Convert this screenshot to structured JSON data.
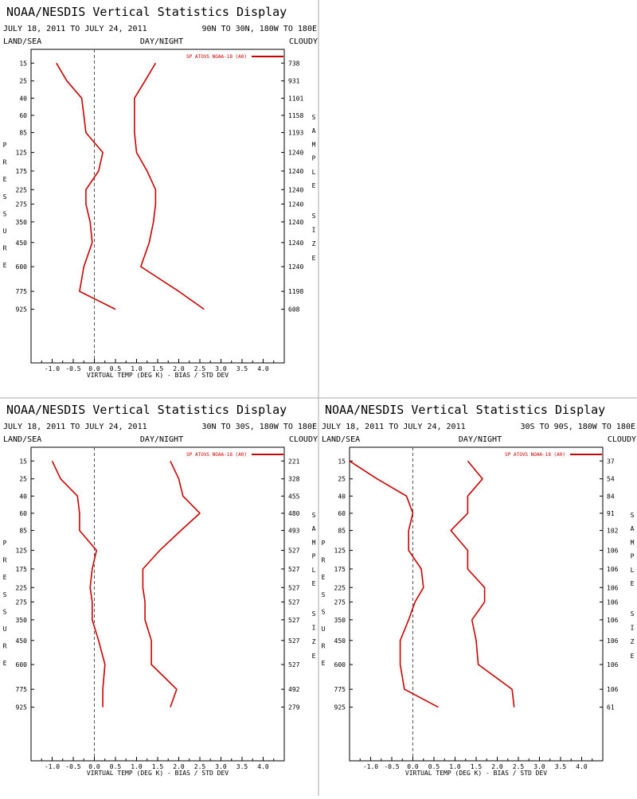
{
  "display_title": "NOAA/NESDIS Vertical Statistics Display",
  "panels_meta": {
    "date_range": "JULY 18, 2011 TO JULY 24, 2011",
    "land_sea": "LAND/SEA",
    "day_night": "DAY/NIGHT",
    "cloudy": "CLOUDY",
    "legend_label": "SP ATOVS NOAA-18 (A0)",
    "pressure_letters": [
      "P",
      "R",
      "E",
      "S",
      "S",
      "U",
      "R",
      "E"
    ],
    "sample_letters": [
      "S",
      "A",
      "M",
      "P",
      "L",
      "E"
    ],
    "size_letters": [
      "S",
      "I",
      "Z",
      "E"
    ],
    "xlabel": "VIRTUAL TEMP (DEG K) - BIAS / STD DEV",
    "xticks": [
      "-1.0",
      "-0.5",
      "0.0",
      "0.5",
      "1.0",
      "1.5",
      "2.0",
      "2.5",
      "3.0",
      "3.5",
      "4.0"
    ],
    "pressure_levels": [
      "15",
      "25",
      "40",
      "60",
      "85",
      "125",
      "175",
      "225",
      "275",
      "350",
      "450",
      "600",
      "775",
      "925"
    ]
  },
  "chart_data": [
    {
      "type": "line",
      "region": "90N TO 30N, 180W TO 180E",
      "pressure": [
        15,
        25,
        40,
        60,
        85,
        125,
        175,
        225,
        275,
        350,
        450,
        600,
        775,
        925
      ],
      "xlim": [
        -1.5,
        4.5
      ],
      "series": [
        {
          "name": "SP ATOVS NOAA-18 (A0)",
          "role": "bias",
          "values": [
            -0.9,
            -0.65,
            -0.3,
            -0.25,
            -0.2,
            0.2,
            0.1,
            -0.2,
            -0.2,
            -0.1,
            -0.05,
            -0.25,
            -0.35,
            0.5
          ]
        },
        {
          "name": "SP ATOVS NOAA-18 (A0)",
          "role": "std_dev",
          "values": [
            1.45,
            1.2,
            0.95,
            0.95,
            0.95,
            1.0,
            1.25,
            1.45,
            1.45,
            1.4,
            1.3,
            1.1,
            2.0,
            2.6
          ]
        }
      ],
      "sample_size": [
        "738",
        "931",
        "1101",
        "1158",
        "1193",
        "1240",
        "1240",
        "1240",
        "1240",
        "1240",
        "1240",
        "1240",
        "1198",
        "608"
      ]
    },
    {
      "type": "line",
      "region": "30N TO 30S, 180W TO 180E",
      "pressure": [
        15,
        25,
        40,
        60,
        85,
        125,
        175,
        225,
        275,
        350,
        450,
        600,
        775,
        925
      ],
      "xlim": [
        -1.5,
        4.5
      ],
      "series": [
        {
          "name": "SP ATOVS NOAA-18 (A0)",
          "role": "bias",
          "values": [
            -1.0,
            -0.8,
            -0.4,
            -0.35,
            -0.35,
            0.05,
            -0.05,
            -0.1,
            -0.05,
            -0.05,
            0.1,
            0.25,
            0.2,
            0.2
          ]
        },
        {
          "name": "SP ATOVS NOAA-18 (A0)",
          "role": "std_dev",
          "values": [
            1.8,
            2.0,
            2.1,
            2.5,
            2.05,
            1.55,
            1.15,
            1.15,
            1.2,
            1.2,
            1.35,
            1.35,
            1.95,
            1.8
          ]
        }
      ],
      "sample_size": [
        "221",
        "328",
        "455",
        "480",
        "493",
        "527",
        "527",
        "527",
        "527",
        "527",
        "527",
        "527",
        "492",
        "279"
      ]
    },
    {
      "type": "line",
      "region": "30S TO 90S, 180W TO 180E",
      "pressure": [
        15,
        25,
        40,
        60,
        85,
        125,
        175,
        225,
        275,
        350,
        450,
        600,
        775,
        925
      ],
      "xlim": [
        -1.5,
        4.5
      ],
      "series": [
        {
          "name": "SP ATOVS NOAA-18 (A0)",
          "role": "bias",
          "values": [
            -1.5,
            -0.85,
            -0.15,
            0.0,
            -0.1,
            -0.1,
            0.2,
            0.25,
            0.05,
            -0.1,
            -0.3,
            -0.3,
            -0.2,
            0.6
          ]
        },
        {
          "name": "SP ATOVS NOAA-18 (A0)",
          "role": "std_dev",
          "values": [
            1.3,
            1.65,
            1.3,
            1.3,
            0.9,
            1.3,
            1.3,
            1.7,
            1.7,
            1.4,
            1.5,
            1.55,
            2.35,
            2.4
          ]
        }
      ],
      "sample_size": [
        "37",
        "54",
        "84",
        "91",
        "102",
        "106",
        "106",
        "106",
        "106",
        "106",
        "106",
        "106",
        "106",
        "61"
      ]
    }
  ]
}
